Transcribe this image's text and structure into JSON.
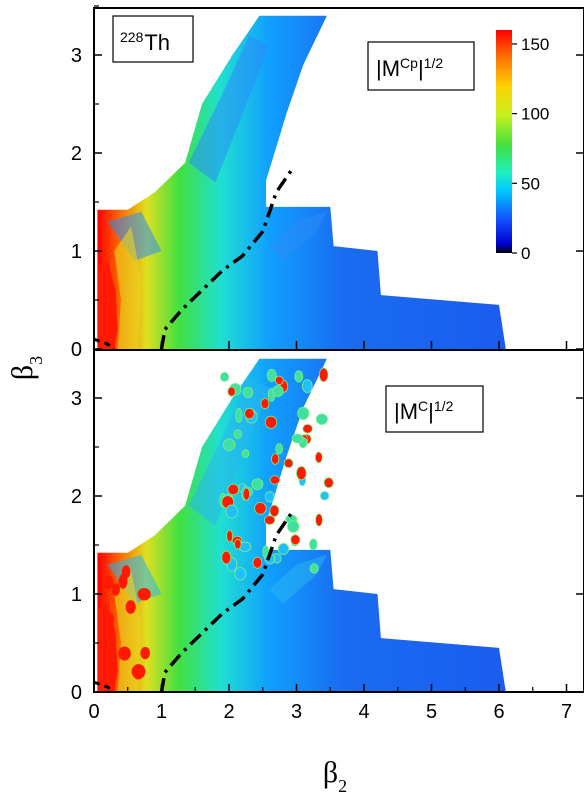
{
  "chart_data": {
    "type": "heatmap",
    "x_axis": {
      "label_base": "β",
      "label_sub": "2",
      "range": [
        0,
        7.25
      ],
      "ticks": [
        "0",
        "1",
        "2",
        "3",
        "4",
        "5",
        "6",
        "7"
      ]
    },
    "y_axis": {
      "label_base": "β",
      "label_sub": "3",
      "range": [
        0,
        3.4
      ],
      "ticks": [
        "0",
        "1",
        "2",
        "3"
      ]
    },
    "colorbar": {
      "range": [
        0,
        160
      ],
      "ticks": [
        "0",
        "50",
        "100",
        "150"
      ],
      "colors": [
        "#000000",
        "#0000d0",
        "#1450ff",
        "#00c8ff",
        "#20f0c0",
        "#40e040",
        "#c8f020",
        "#ffd000",
        "#ff7000",
        "#ff0000"
      ]
    },
    "panels": [
      {
        "isotope": {
          "mass": "228",
          "symbol": "Th"
        },
        "quantity": {
          "base": "|M",
          "sup1": "Cp",
          "mid": "|",
          "sup2": "1/2"
        },
        "domain_boundary_beta2_beta3": [
          [
            0.05,
            0
          ],
          [
            0.05,
            1.42
          ],
          [
            0.5,
            1.42
          ],
          [
            0.9,
            1.6
          ],
          [
            1.35,
            1.9
          ],
          [
            1.6,
            2.5
          ],
          [
            2.05,
            3.0
          ],
          [
            2.45,
            3.4
          ],
          [
            3.45,
            3.4
          ],
          [
            3.1,
            2.9
          ],
          [
            2.85,
            2.4
          ],
          [
            2.55,
            1.72
          ],
          [
            2.55,
            1.45
          ],
          [
            3.5,
            1.45
          ],
          [
            3.55,
            1.05
          ],
          [
            4.2,
            1.0
          ],
          [
            4.25,
            0.55
          ],
          [
            6.0,
            0.45
          ],
          [
            6.1,
            0.0
          ]
        ],
        "dashed_path_beta2_beta3": [
          [
            0.0,
            0.1
          ],
          [
            0.2,
            0.05
          ],
          [
            0.3,
            0.0
          ]
        ],
        "dashdot_path_beta2_beta3": [
          [
            1.0,
            0.0
          ],
          [
            1.05,
            0.2
          ],
          [
            1.3,
            0.4
          ],
          [
            1.6,
            0.6
          ],
          [
            1.9,
            0.8
          ],
          [
            2.2,
            0.95
          ],
          [
            2.5,
            1.2
          ],
          [
            2.7,
            1.6
          ],
          [
            2.95,
            1.85
          ]
        ]
      },
      {
        "quantity": {
          "base": "|M",
          "sup1": "C",
          "mid": "|",
          "sup2": "1/2"
        },
        "domain_boundary_beta2_beta3": [
          [
            0.05,
            0
          ],
          [
            0.05,
            1.42
          ],
          [
            0.5,
            1.42
          ],
          [
            0.9,
            1.6
          ],
          [
            1.35,
            1.9
          ],
          [
            1.6,
            2.5
          ],
          [
            2.05,
            3.0
          ],
          [
            2.45,
            3.4
          ],
          [
            3.45,
            3.4
          ],
          [
            3.1,
            2.9
          ],
          [
            2.85,
            2.4
          ],
          [
            2.55,
            1.72
          ],
          [
            2.55,
            1.45
          ],
          [
            3.5,
            1.45
          ],
          [
            3.55,
            1.05
          ],
          [
            4.2,
            1.0
          ],
          [
            4.25,
            0.55
          ],
          [
            6.0,
            0.45
          ],
          [
            6.1,
            0.0
          ]
        ],
        "dashed_path_beta2_beta3": [
          [
            0.0,
            0.1
          ],
          [
            0.2,
            0.05
          ],
          [
            0.3,
            0.0
          ]
        ],
        "dashdot_path_beta2_beta3": [
          [
            1.0,
            0.0
          ],
          [
            1.05,
            0.2
          ],
          [
            1.3,
            0.4
          ],
          [
            1.6,
            0.6
          ],
          [
            1.9,
            0.8
          ],
          [
            2.2,
            0.95
          ],
          [
            2.5,
            1.2
          ],
          [
            2.7,
            1.6
          ],
          [
            2.95,
            1.85
          ]
        ]
      }
    ]
  }
}
